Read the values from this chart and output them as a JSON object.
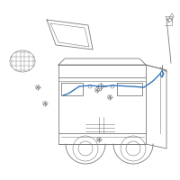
{
  "background_color": "#ffffff",
  "line_color": "#7a7a7a",
  "cable_color": "#3377bb",
  "figsize": [
    2.0,
    2.0
  ],
  "dpi": 100,
  "lw_main": 0.6,
  "lw_thin": 0.4,
  "lw_cable": 1.0
}
